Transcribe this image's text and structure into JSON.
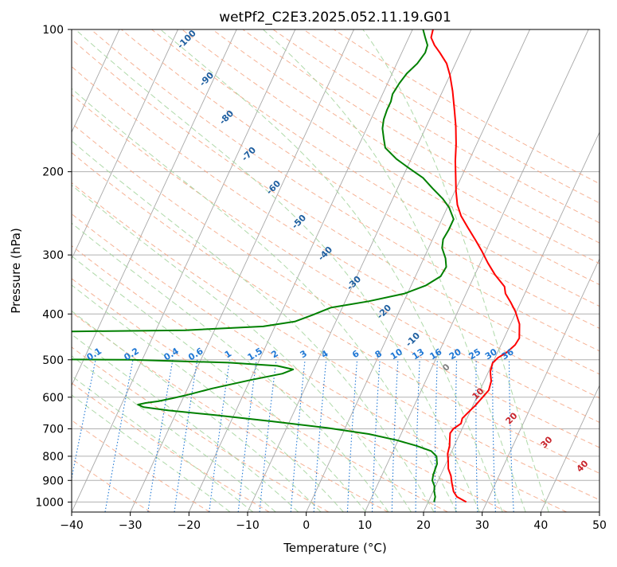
{
  "chart_data": {
    "type": "line",
    "chart_kind": "skew-T log-P diagram",
    "title": "wetPf2_C2E3.2025.052.11.19.G01",
    "xlabel": "Temperature (°C)",
    "ylabel": "Pressure (hPa)",
    "xlim": [
      -40,
      50
    ],
    "ylim": [
      1050,
      100
    ],
    "y_scale": "log",
    "x_ticks": [
      -40,
      -30,
      -20,
      -10,
      0,
      10,
      20,
      30,
      40,
      50
    ],
    "x_tick_labels": [
      "−40",
      "−30",
      "−20",
      "−10",
      "0",
      "10",
      "20",
      "30",
      "40",
      "50"
    ],
    "y_ticks": [
      1000,
      900,
      800,
      700,
      600,
      500,
      400,
      300,
      200,
      100
    ],
    "y_tick_labels": [
      "1000",
      "900",
      "800",
      "700",
      "600",
      "500",
      "400",
      "300",
      "200",
      "100"
    ],
    "grid": true,
    "colors": {
      "temperature": "#ff0000",
      "dewpoint": "#008000",
      "isotherm": "#a8a8a8",
      "isobar": "#b0b0b0",
      "dry_adiabat": "#f4a582",
      "moist_adiabat": "#a6d5a0",
      "mixing_ratio": "#1f77d4",
      "theta_label_blue": "#1f5fa0",
      "theta_label_red": "#c8242b",
      "theta_label_gray": "#808080"
    },
    "series": [
      {
        "key": "temperature",
        "points": [
          [
            26.5,
            1000
          ],
          [
            24.5,
            975
          ],
          [
            23.5,
            950
          ],
          [
            22.5,
            910
          ],
          [
            21.8,
            880
          ],
          [
            20.8,
            850
          ],
          [
            20.2,
            820
          ],
          [
            19.5,
            790
          ],
          [
            19.2,
            760
          ],
          [
            18.8,
            740
          ],
          [
            18.3,
            715
          ],
          [
            18.5,
            700
          ],
          [
            19.4,
            682
          ],
          [
            19.2,
            665
          ],
          [
            19.7,
            648
          ],
          [
            20.4,
            625
          ],
          [
            21.0,
            600
          ],
          [
            21.5,
            580
          ],
          [
            21.2,
            555
          ],
          [
            20.3,
            530
          ],
          [
            20.0,
            508
          ],
          [
            20.5,
            495
          ],
          [
            21.6,
            482
          ],
          [
            22.4,
            465
          ],
          [
            22.6,
            450
          ],
          [
            21.5,
            420
          ],
          [
            19.8,
            395
          ],
          [
            18.3,
            378
          ],
          [
            16.7,
            362
          ],
          [
            16.0,
            350
          ],
          [
            13.4,
            330
          ],
          [
            11.3,
            312
          ],
          [
            9.4,
            295
          ],
          [
            7.5,
            280
          ],
          [
            5.0,
            262
          ],
          [
            3.0,
            248
          ],
          [
            1.5,
            235
          ],
          [
            0.2,
            220
          ],
          [
            -1.0,
            205
          ],
          [
            -2.3,
            190
          ],
          [
            -3.5,
            175
          ],
          [
            -5.0,
            160
          ],
          [
            -6.5,
            148
          ],
          [
            -8.3,
            135
          ],
          [
            -10.0,
            125
          ],
          [
            -11.5,
            118
          ],
          [
            -13.5,
            112
          ],
          [
            -15.0,
            108
          ],
          [
            -16.2,
            104
          ],
          [
            -16.5,
            100
          ]
        ]
      },
      {
        "key": "dewpoint",
        "points": [
          [
            21.0,
            1000
          ],
          [
            20.8,
            975
          ],
          [
            20.2,
            950
          ],
          [
            19.8,
            925
          ],
          [
            19.0,
            900
          ],
          [
            18.7,
            875
          ],
          [
            18.6,
            850
          ],
          [
            18.5,
            830
          ],
          [
            17.8,
            800
          ],
          [
            16.5,
            780
          ],
          [
            13.5,
            760
          ],
          [
            9.8,
            740
          ],
          [
            4.5,
            718
          ],
          [
            -3.0,
            697
          ],
          [
            -13.0,
            675
          ],
          [
            -23.0,
            655
          ],
          [
            -31.5,
            640
          ],
          [
            -36.0,
            630
          ],
          [
            -37.2,
            622
          ],
          [
            -36.0,
            617
          ],
          [
            -34.0,
            612
          ],
          [
            -31.8,
            603
          ],
          [
            -29.5,
            593
          ],
          [
            -25.8,
            575
          ],
          [
            -20.0,
            552
          ],
          [
            -15.0,
            535
          ],
          [
            -13.5,
            524
          ],
          [
            -16.5,
            515
          ],
          [
            -25.0,
            507
          ],
          [
            -42.0,
            500
          ],
          [
            -55.0,
            499
          ]
        ]
      },
      {
        "key": "dewpoint_upper",
        "points": [
          [
            -58.0,
            436
          ],
          [
            -35.0,
            433
          ],
          [
            -22.0,
            425
          ],
          [
            -17.0,
            415
          ],
          [
            -14.5,
            402
          ],
          [
            -12.0,
            388
          ],
          [
            -6.0,
            376
          ],
          [
            -0.5,
            362
          ],
          [
            2.5,
            348
          ],
          [
            4.3,
            333
          ],
          [
            4.5,
            318
          ],
          [
            3.7,
            305
          ],
          [
            2.3,
            290
          ],
          [
            1.8,
            278
          ],
          [
            2.0,
            265
          ],
          [
            2.0,
            252
          ],
          [
            0.3,
            238
          ],
          [
            -1.5,
            228
          ],
          [
            -4.0,
            217
          ],
          [
            -6.5,
            206
          ],
          [
            -9.5,
            197
          ],
          [
            -12.5,
            188
          ],
          [
            -15.3,
            178
          ],
          [
            -16.3,
            170
          ],
          [
            -17.3,
            162
          ],
          [
            -17.8,
            155
          ],
          [
            -18.0,
            148
          ],
          [
            -18.0,
            142
          ],
          [
            -18.3,
            137
          ],
          [
            -18.0,
            130
          ],
          [
            -17.5,
            124
          ],
          [
            -16.5,
            118
          ],
          [
            -16.0,
            112
          ],
          [
            -16.2,
            108
          ],
          [
            -17.2,
            104
          ],
          [
            -18.2,
            100
          ]
        ]
      }
    ],
    "mixing_ratio_labels": [
      "0.1",
      "0.2",
      "0.4",
      "0.6",
      "1",
      "1.5",
      "2",
      "3",
      "4",
      "6",
      "8",
      "10",
      "13",
      "16",
      "20",
      "25",
      "30",
      "36"
    ],
    "theta_labels": [
      {
        "label": "-100",
        "color": "blue"
      },
      {
        "label": "-90",
        "color": "blue"
      },
      {
        "label": "-80",
        "color": "blue"
      },
      {
        "label": "-70",
        "color": "blue"
      },
      {
        "label": "-60",
        "color": "blue"
      },
      {
        "label": "-50",
        "color": "blue"
      },
      {
        "label": "-40",
        "color": "blue"
      },
      {
        "label": "-30",
        "color": "blue"
      },
      {
        "label": "-20",
        "color": "blue"
      },
      {
        "label": "-10",
        "color": "blue"
      },
      {
        "label": "0",
        "color": "gray"
      },
      {
        "label": "10",
        "color": "red"
      },
      {
        "label": "20",
        "color": "red"
      },
      {
        "label": "30",
        "color": "red"
      },
      {
        "label": "40",
        "color": "red"
      }
    ]
  }
}
